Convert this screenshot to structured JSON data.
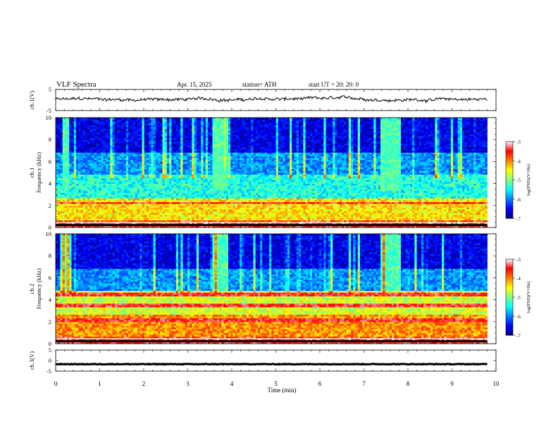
{
  "header": {
    "title": "VLF  Spectra",
    "date": "Apr. 15, 2025",
    "station": "station= ATH",
    "start_ut": "start  UT  =    20: 20: 0"
  },
  "chart_data": [
    {
      "type": "line",
      "name": "ch1-voltage",
      "ylabel": "ch.1(V)",
      "ylim": [
        -5,
        5
      ],
      "yticks": [
        "5",
        "-5"
      ],
      "x_range_min": [
        0,
        9.8
      ],
      "approx_level_v": 0.3
    },
    {
      "type": "heatmap",
      "name": "ch1-spectrogram",
      "ylabel": "ch.1\nFrequency  (kHz)",
      "ylim": [
        0,
        10
      ],
      "yticks": [
        "0",
        "2",
        "4",
        "6",
        "8",
        "10"
      ],
      "x_range_min": [
        0,
        9.8
      ],
      "colorbar": {
        "label": "log(PSD)(V²/Hz)",
        "ticks": [
          "-3",
          "-4",
          "-5",
          "-6",
          "-7"
        ],
        "range": [
          -7,
          -3
        ]
      },
      "bright_segments_min": [
        [
          0.15,
          0.3
        ],
        [
          3.55,
          3.9
        ],
        [
          7.4,
          7.85
        ]
      ]
    },
    {
      "type": "heatmap",
      "name": "ch2-spectrogram",
      "ylabel": "ch.2\nFrequency  (kHz)",
      "ylim": [
        0,
        10
      ],
      "yticks": [
        "0",
        "2",
        "4",
        "6",
        "8",
        "10"
      ],
      "x_range_min": [
        0,
        9.8
      ],
      "colorbar": {
        "label": "log(PSD)(V²/Hz)",
        "ticks": [
          "-3",
          "-4",
          "-5",
          "-6",
          "-7"
        ],
        "range": [
          -7,
          -3
        ]
      },
      "bright_segments_min": [
        [
          0.15,
          0.3
        ],
        [
          3.55,
          3.9
        ],
        [
          7.4,
          7.85
        ]
      ]
    },
    {
      "type": "line",
      "name": "ch3-voltage",
      "ylabel": "ch.3(V)",
      "ylim": [
        -5,
        5
      ],
      "yticks": [
        "5",
        "0",
        "-5"
      ],
      "x_range_min": [
        0,
        9.8
      ],
      "approx_level_v": -1.7
    }
  ],
  "xaxis": {
    "label": "Time  (min)",
    "xlim": [
      0,
      10
    ],
    "ticks": [
      "0",
      "1",
      "2",
      "3",
      "4",
      "5",
      "6",
      "7",
      "8",
      "9",
      "10"
    ]
  },
  "colors": {
    "spectrum": [
      "#000080",
      "#0000ff",
      "#0080ff",
      "#00ffff",
      "#80ff80",
      "#ffff00",
      "#ff8000",
      "#ff0000",
      "#ffffff"
    ]
  }
}
